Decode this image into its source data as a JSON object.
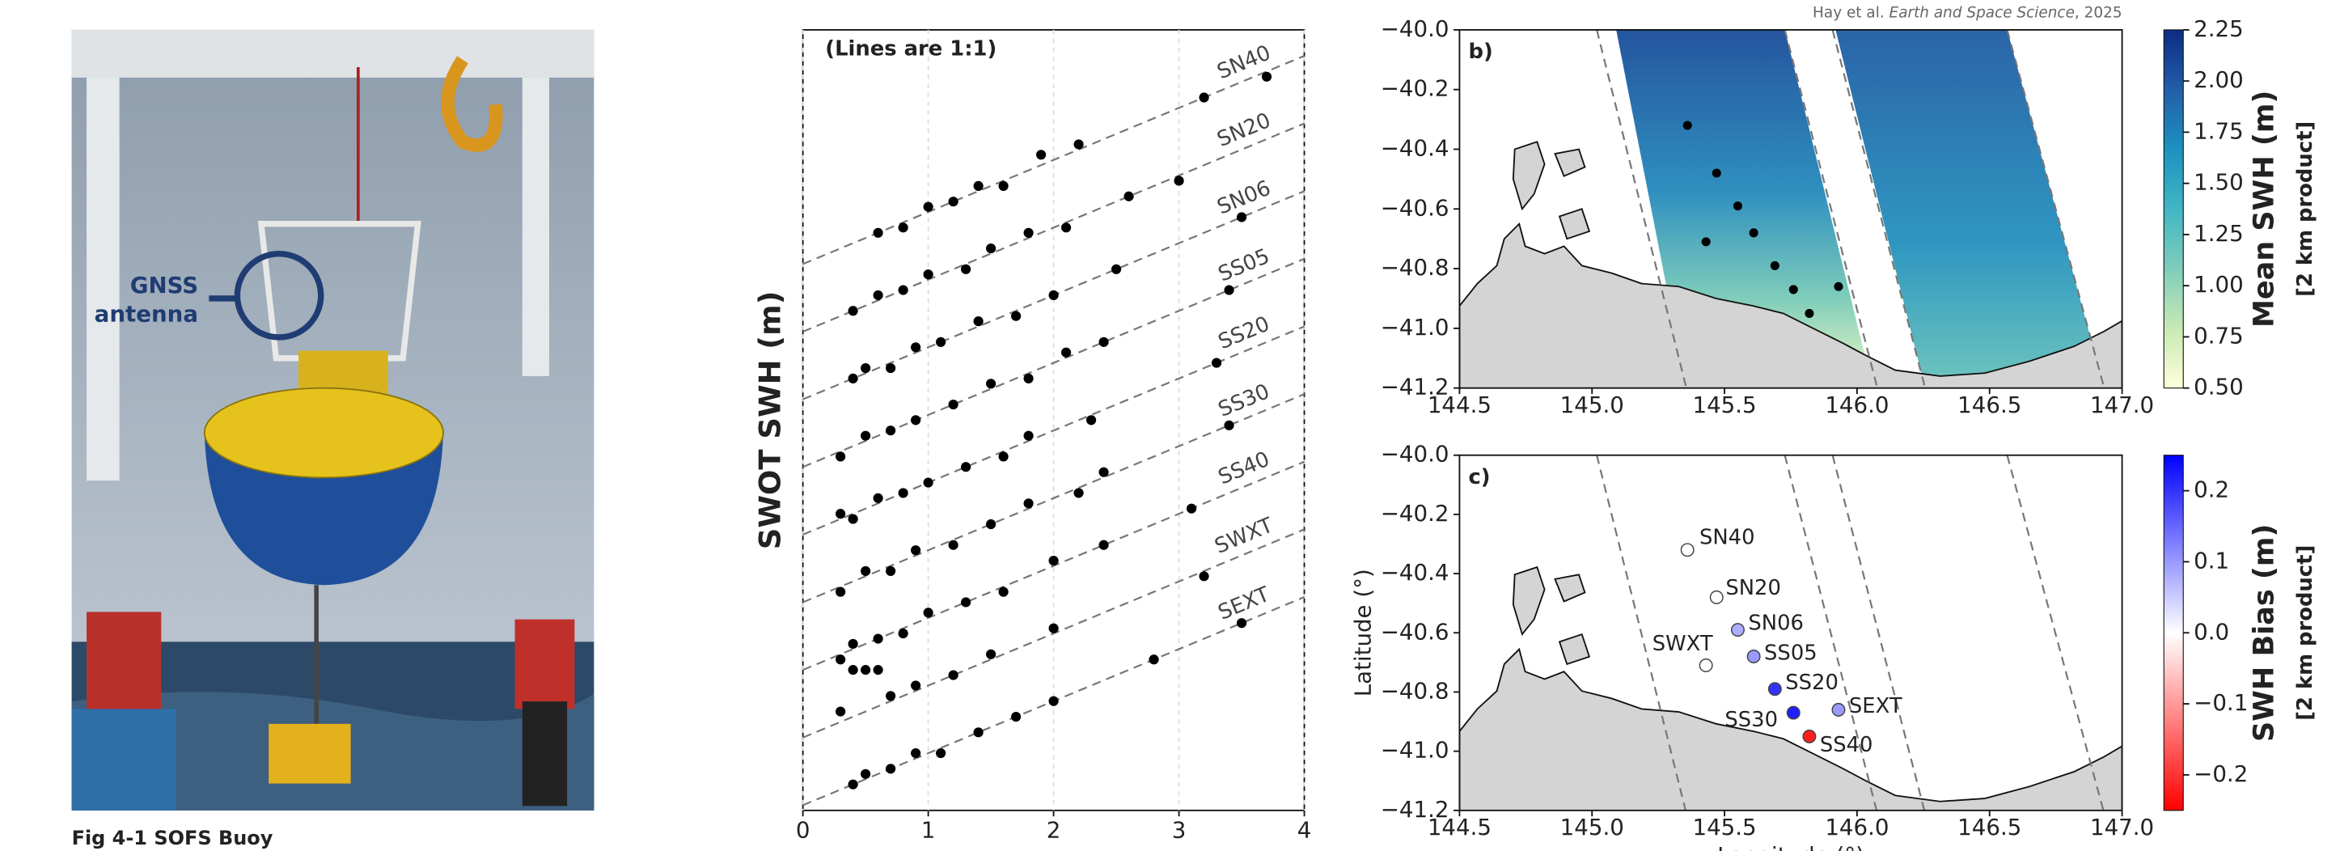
{
  "figure_caption": "Fig 4-1  SOFS Buoy",
  "photo": {
    "annotation": [
      "GNSS",
      "antenna"
    ]
  },
  "citation": {
    "authors": "Hay et al. ",
    "journal": "Earth and Space Science",
    "year": ", 2025"
  },
  "chart_data": [
    {
      "type": "scatter",
      "annotation": "(Lines are 1:1)",
      "ylabel": "SWOT SWH (m)",
      "xlim": [
        0,
        4
      ],
      "xticks": [
        0,
        1,
        2,
        3,
        4
      ],
      "ylim": [
        0,
        15
      ],
      "grid": true,
      "series": [
        {
          "name": "SN40",
          "color": "#000000",
          "x": [
            0.6,
            0.8,
            1.0,
            1.2,
            1.4,
            1.6,
            1.9,
            2.2,
            3.2,
            3.7
          ],
          "values": [
            11.1,
            11.2,
            11.6,
            11.7,
            12.0,
            12.0,
            12.6,
            12.8,
            13.7,
            14.1
          ],
          "reference_line": {
            "x": [
              0,
              4
            ],
            "y": [
              10.5,
              14.5
            ]
          }
        },
        {
          "name": "SN20",
          "color": "#000000",
          "x": [
            0.4,
            0.6,
            0.8,
            1.0,
            1.3,
            1.5,
            1.8,
            2.1,
            2.6,
            3.0
          ],
          "values": [
            9.6,
            9.9,
            10.0,
            10.3,
            10.4,
            10.8,
            11.1,
            11.2,
            11.8,
            12.1
          ],
          "reference_line": {
            "x": [
              0,
              4
            ],
            "y": [
              9.2,
              13.2
            ]
          }
        },
        {
          "name": "SN06",
          "color": "#000000",
          "x": [
            0.4,
            0.5,
            0.7,
            0.9,
            1.1,
            1.4,
            1.7,
            2.0,
            2.5,
            3.5
          ],
          "values": [
            8.3,
            8.5,
            8.5,
            8.9,
            9.0,
            9.4,
            9.5,
            9.9,
            10.4,
            11.4
          ],
          "reference_line": {
            "x": [
              0,
              4
            ],
            "y": [
              7.9,
              11.9
            ]
          }
        },
        {
          "name": "SS05",
          "color": "#000000",
          "x": [
            0.3,
            0.5,
            0.7,
            0.9,
            1.2,
            1.5,
            1.8,
            2.1,
            2.4,
            3.4
          ],
          "values": [
            6.8,
            7.2,
            7.3,
            7.5,
            7.8,
            8.2,
            8.3,
            8.8,
            9.0,
            10.0
          ],
          "reference_line": {
            "x": [
              0,
              4
            ],
            "y": [
              6.6,
              10.6
            ]
          }
        },
        {
          "name": "SS20",
          "color": "#000000",
          "x": [
            0.3,
            0.4,
            0.6,
            0.8,
            1.0,
            1.3,
            1.6,
            1.8,
            2.3,
            3.3
          ],
          "values": [
            5.7,
            5.6,
            6.0,
            6.1,
            6.3,
            6.6,
            6.8,
            7.2,
            7.5,
            8.6
          ],
          "reference_line": {
            "x": [
              0,
              4
            ],
            "y": [
              5.3,
              9.3
            ]
          }
        },
        {
          "name": "SS30",
          "color": "#000000",
          "x": [
            0.3,
            0.5,
            0.7,
            0.9,
            1.2,
            1.5,
            1.8,
            2.2,
            2.4,
            3.4
          ],
          "values": [
            4.2,
            4.6,
            4.6,
            5.0,
            5.1,
            5.5,
            5.9,
            6.1,
            6.5,
            7.4
          ],
          "reference_line": {
            "x": [
              0,
              4
            ],
            "y": [
              4.0,
              8.0
            ]
          }
        },
        {
          "name": "SS40",
          "color": "#000000",
          "x": [
            0.3,
            0.4,
            0.6,
            0.8,
            1.0,
            1.3,
            1.6,
            2.0,
            2.4,
            3.1
          ],
          "values": [
            2.9,
            3.2,
            3.3,
            3.4,
            3.8,
            4.0,
            4.2,
            4.8,
            5.1,
            5.8
          ],
          "reference_line": {
            "x": [
              0,
              4
            ],
            "y": [
              2.7,
              6.7
            ]
          }
        },
        {
          "name": "SWXT",
          "color": "#000000",
          "x": [
            0.3,
            0.4,
            0.5,
            0.6,
            0.7,
            0.9,
            1.2,
            1.5,
            2.0,
            3.2
          ],
          "values": [
            1.9,
            2.7,
            2.7,
            2.7,
            2.2,
            2.4,
            2.6,
            3.0,
            3.5,
            4.5
          ],
          "reference_line": {
            "x": [
              0,
              4
            ],
            "y": [
              1.4,
              5.4
            ]
          }
        },
        {
          "name": "SEXT",
          "color": "#000000",
          "x": [
            0.4,
            0.5,
            0.7,
            0.9,
            1.1,
            1.4,
            1.7,
            2.0,
            2.8,
            3.5
          ],
          "values": [
            0.5,
            0.7,
            0.8,
            1.1,
            1.1,
            1.5,
            1.8,
            2.1,
            2.9,
            3.6
          ],
          "reference_line": {
            "x": [
              0,
              4
            ],
            "y": [
              0.1,
              4.1
            ]
          }
        }
      ]
    },
    {
      "type": "map",
      "panel_label": "b)",
      "xlim": [
        144.5,
        147
      ],
      "xticks": [
        144.5,
        {
          "value": 145,
          "label": "145.0"
        },
        145.5,
        {
          "value": 146,
          "label": "146.0"
        },
        146.5,
        {
          "value": 147,
          "label": "147.0"
        }
      ],
      "ylim": [
        -41.2,
        -40
      ],
      "yticks": [
        {
          "value": -41.2,
          "label": "−41.2"
        },
        {
          "value": -41,
          "label": "−41.0"
        },
        {
          "value": -40.8,
          "label": "−40.8"
        },
        {
          "value": -40.6,
          "label": "−40.6"
        },
        {
          "value": -40.4,
          "label": "−40.4"
        },
        {
          "value": -40.2,
          "label": "−40.2"
        },
        {
          "value": -40,
          "label": "−40.0"
        }
      ],
      "points": {
        "color": "#000000",
        "lon": [
          145.36,
          145.47,
          145.55,
          145.61,
          145.43,
          145.69,
          145.76,
          145.93,
          145.82
        ],
        "lat": [
          -40.32,
          -40.48,
          -40.59,
          -40.68,
          -40.71,
          -40.79,
          -40.87,
          -40.86,
          -40.95
        ]
      },
      "colorbar": {
        "label": "Mean SWH (m)",
        "sublabel": "[2 km product]",
        "lim": [
          0.5,
          2.25
        ],
        "ticks": [
          {
            "value": 0.5,
            "label": "0.50"
          },
          0.75,
          {
            "value": 1,
            "label": "1.00"
          },
          1.25,
          {
            "value": 1.5,
            "label": "1.50"
          },
          1.75,
          {
            "value": 2,
            "label": "2.00"
          },
          2.25
        ],
        "colors": [
          "#ffffd9",
          "#c7e9b4",
          "#7fcdbb",
          "#41b6c4",
          "#1d91c0",
          "#225ea8",
          "#0c2c84"
        ]
      }
    },
    {
      "type": "map",
      "panel_label": "c)",
      "ylabel": "Latitude (°)",
      "xlabel": "Longitude (°)",
      "xlim": [
        144.5,
        147
      ],
      "xticks": [
        144.5,
        {
          "value": 145,
          "label": "145.0"
        },
        145.5,
        {
          "value": 146,
          "label": "146.0"
        },
        146.5,
        {
          "value": 147,
          "label": "147.0"
        }
      ],
      "ylim": [
        -41.2,
        -40
      ],
      "yticks": [
        {
          "value": -41.2,
          "label": "−41.2"
        },
        {
          "value": -41,
          "label": "−41.0"
        },
        {
          "value": -40.8,
          "label": "−40.8"
        },
        {
          "value": -40.6,
          "label": "−40.6"
        },
        {
          "value": -40.4,
          "label": "−40.4"
        },
        {
          "value": -40.2,
          "label": "−40.2"
        },
        {
          "value": -40,
          "label": "−40.0"
        }
      ],
      "stations": {
        "names": [
          "SN40",
          "SN20",
          "SN06",
          "SS05",
          "SWXT",
          "SS20",
          "SS30",
          "SEXT",
          "SS40"
        ],
        "lon": [
          145.36,
          145.47,
          145.55,
          145.61,
          145.43,
          145.69,
          145.76,
          145.93,
          145.82
        ],
        "lat": [
          -40.32,
          -40.48,
          -40.59,
          -40.68,
          -40.71,
          -40.79,
          -40.87,
          -40.86,
          -40.95
        ],
        "bias": [
          0.0,
          0.0,
          0.08,
          0.1,
          0.0,
          0.2,
          0.22,
          0.1,
          -0.22
        ]
      },
      "colorbar": {
        "label": "SWH Bias (m)",
        "sublabel": "[2 km product]",
        "lim": [
          -0.25,
          0.25
        ],
        "ticks": [
          {
            "value": -0.2,
            "label": "−0.2"
          },
          {
            "value": -0.1,
            "label": "−0.1"
          },
          {
            "value": 0,
            "label": "0.0"
          },
          0.1,
          0.2
        ],
        "colors": [
          "#ff0000",
          "#ffffff",
          "#0000ff"
        ]
      }
    }
  ]
}
